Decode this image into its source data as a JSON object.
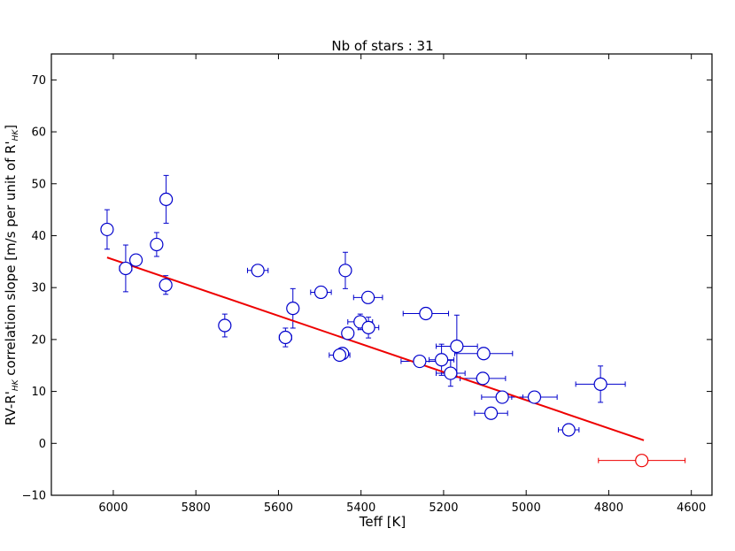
{
  "chart_data": {
    "type": "scatter",
    "title": "Nb of stars : 31",
    "xlabel": "Teff [K]",
    "ylabel": "RV-R'HK correlation slope [m/s per unit of R'HK]",
    "xlim": [
      6150,
      4550
    ],
    "ylim": [
      -10,
      75
    ],
    "x_ticks": [
      6000,
      5800,
      5600,
      5400,
      5200,
      5000,
      4800,
      4600
    ],
    "y_ticks": [
      -10,
      0,
      10,
      20,
      30,
      40,
      50,
      60,
      70
    ],
    "x_inverted": true,
    "grid": false,
    "colors": {
      "points": "#0000cc",
      "fit": "#ee0000",
      "outlier": "#ee0000"
    },
    "series": [
      {
        "marker": "open-circle",
        "points": [
          {
            "x": 6015,
            "y": 41.2,
            "xerr": 0,
            "yerr": 3.8
          },
          {
            "x": 5970,
            "y": 33.7,
            "xerr": 15,
            "yerr": 4.5
          },
          {
            "x": 5945,
            "y": 35.3,
            "xerr": 10,
            "yerr": 1.0
          },
          {
            "x": 5895,
            "y": 38.3,
            "xerr": 8,
            "yerr": 2.3
          },
          {
            "x": 5872,
            "y": 47.0,
            "xerr": 0,
            "yerr": 4.6
          },
          {
            "x": 5873,
            "y": 30.5,
            "xerr": 0,
            "yerr": 1.8
          },
          {
            "x": 5730,
            "y": 22.7,
            "xerr": 8,
            "yerr": 2.2
          },
          {
            "x": 5650,
            "y": 33.3,
            "xerr": 25,
            "yerr": 0.8
          },
          {
            "x": 5583,
            "y": 20.4,
            "xerr": 15,
            "yerr": 1.8
          },
          {
            "x": 5565,
            "y": 26.0,
            "xerr": 10,
            "yerr": 3.8
          },
          {
            "x": 5497,
            "y": 29.1,
            "xerr": 25,
            "yerr": 1.0
          },
          {
            "x": 5438,
            "y": 33.3,
            "xerr": 0,
            "yerr": 3.5
          },
          {
            "x": 5383,
            "y": 28.1,
            "xerr": 35,
            "yerr": 0.5
          },
          {
            "x": 5402,
            "y": 23.4,
            "xerr": 30,
            "yerr": 1.5
          },
          {
            "x": 5382,
            "y": 22.3,
            "xerr": 25,
            "yerr": 2.0
          },
          {
            "x": 5432,
            "y": 21.2,
            "xerr": 0,
            "yerr": 1.0
          },
          {
            "x": 5445,
            "y": 17.3,
            "xerr": 10,
            "yerr": 0.7
          },
          {
            "x": 5452,
            "y": 17.0,
            "xerr": 25,
            "yerr": 0.5
          },
          {
            "x": 5243,
            "y": 25.0,
            "xerr": 55,
            "yerr": 0.5
          },
          {
            "x": 5258,
            "y": 15.8,
            "xerr": 45,
            "yerr": 0.5
          },
          {
            "x": 5205,
            "y": 16.1,
            "xerr": 30,
            "yerr": 3.0
          },
          {
            "x": 5183,
            "y": 13.5,
            "xerr": 35,
            "yerr": 2.5
          },
          {
            "x": 5168,
            "y": 18.7,
            "xerr": 50,
            "yerr": 6.0
          },
          {
            "x": 5103,
            "y": 17.3,
            "xerr": 70,
            "yerr": 0.5
          },
          {
            "x": 5105,
            "y": 12.5,
            "xerr": 55,
            "yerr": 0.8
          },
          {
            "x": 5058,
            "y": 8.9,
            "xerr": 50,
            "yerr": 0.8
          },
          {
            "x": 5085,
            "y": 5.8,
            "xerr": 40,
            "yerr": 0.8
          },
          {
            "x": 4980,
            "y": 8.9,
            "xerr": 55,
            "yerr": 0.5
          },
          {
            "x": 4897,
            "y": 2.6,
            "xerr": 25,
            "yerr": 0.8
          },
          {
            "x": 4820,
            "y": 11.4,
            "xerr": 60,
            "yerr": 3.5
          }
        ]
      },
      {
        "marker": "open-circle",
        "points": [
          {
            "x": 4720,
            "y": -3.3,
            "xerr": 105,
            "yerr": 0
          }
        ]
      }
    ],
    "fit_line": {
      "x": [
        6015,
        4715
      ],
      "y": [
        35.8,
        0.6
      ]
    }
  }
}
